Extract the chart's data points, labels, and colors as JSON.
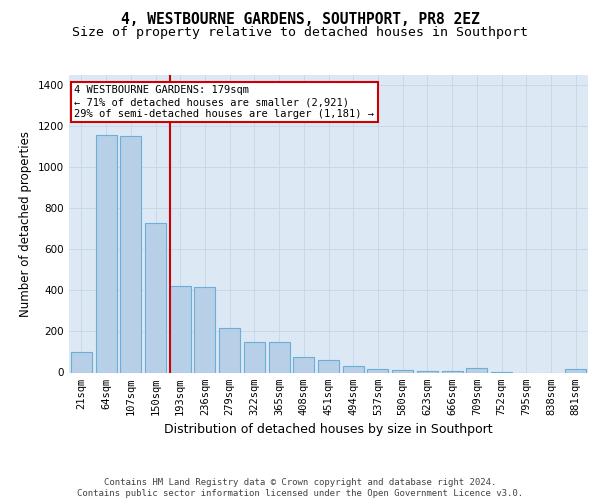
{
  "title": "4, WESTBOURNE GARDENS, SOUTHPORT, PR8 2EZ",
  "subtitle": "Size of property relative to detached houses in Southport",
  "xlabel": "Distribution of detached houses by size in Southport",
  "ylabel": "Number of detached properties",
  "categories": [
    "21sqm",
    "64sqm",
    "107sqm",
    "150sqm",
    "193sqm",
    "236sqm",
    "279sqm",
    "322sqm",
    "365sqm",
    "408sqm",
    "451sqm",
    "494sqm",
    "537sqm",
    "580sqm",
    "623sqm",
    "666sqm",
    "709sqm",
    "752sqm",
    "795sqm",
    "838sqm",
    "881sqm"
  ],
  "values": [
    100,
    1160,
    1155,
    730,
    420,
    415,
    215,
    150,
    150,
    75,
    60,
    30,
    15,
    10,
    8,
    5,
    20,
    3,
    0,
    0,
    15
  ],
  "bar_color": "#b8cfe8",
  "bar_edge_color": "#6baed6",
  "property_line_color": "#cc0000",
  "property_line_index": 3.575,
  "annotation_text": "4 WESTBOURNE GARDENS: 179sqm\n← 71% of detached houses are smaller (2,921)\n29% of semi-detached houses are larger (1,181) →",
  "annotation_box_edge_color": "#cc0000",
  "annotation_box_face_color": "white",
  "ylim": [
    0,
    1450
  ],
  "yticks": [
    0,
    200,
    400,
    600,
    800,
    1000,
    1200,
    1400
  ],
  "grid_color": "#c8d8e8",
  "background_color": "#dce8f4",
  "footer_text": "Contains HM Land Registry data © Crown copyright and database right 2024.\nContains public sector information licensed under the Open Government Licence v3.0.",
  "title_fontsize": 10.5,
  "subtitle_fontsize": 9.5,
  "ylabel_fontsize": 8.5,
  "xlabel_fontsize": 9,
  "tick_fontsize": 7.5,
  "footer_fontsize": 6.5,
  "annot_fontsize": 7.5
}
